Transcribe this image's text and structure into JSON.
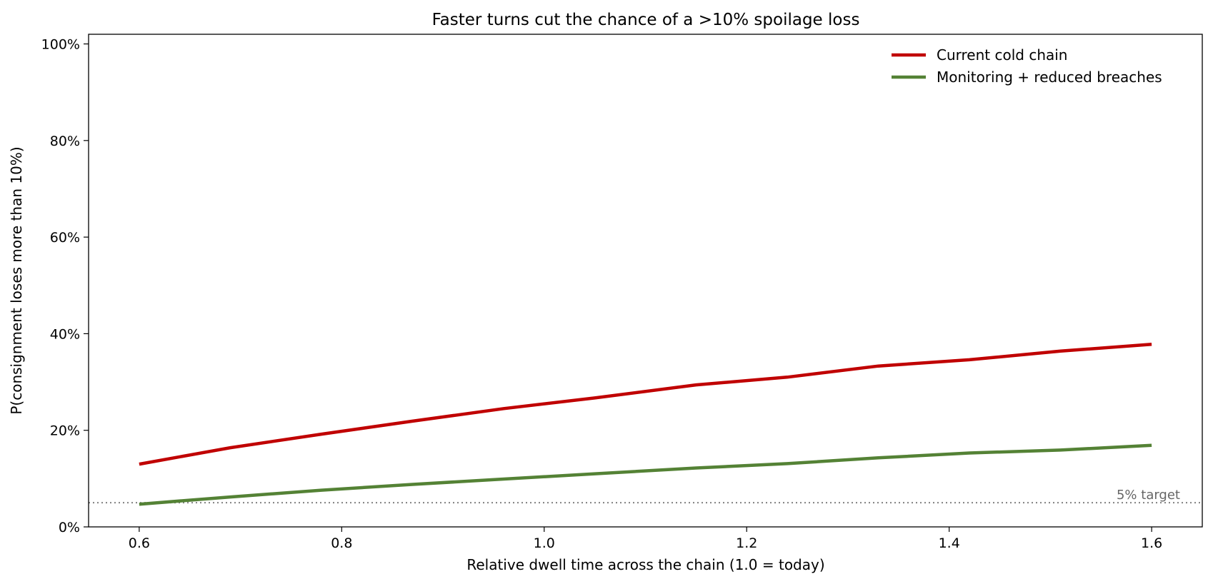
{
  "chart_data": {
    "type": "line",
    "title": "Faster turns cut the chance of a >10% spoilage loss",
    "xlabel": "Relative dwell time across the chain  (1.0 = today)",
    "ylabel": "P(consignment loses more than 10%)",
    "xlim": [
      0.55,
      1.65
    ],
    "ylim": [
      0,
      1.02
    ],
    "x_ticks": [
      0.6,
      0.8,
      1.0,
      1.2,
      1.4,
      1.6
    ],
    "x_tick_labels": [
      "0.6",
      "0.8",
      "1.0",
      "1.2",
      "1.4",
      "1.6"
    ],
    "y_ticks": [
      0,
      0.2,
      0.4,
      0.6,
      0.8,
      1.0
    ],
    "y_tick_labels": [
      "0%",
      "20%",
      "40%",
      "60%",
      "80%",
      "100%"
    ],
    "grid": false,
    "legend_position": "top-right",
    "x": [
      0.6,
      0.69,
      0.78,
      0.87,
      0.96,
      1.05,
      1.15,
      1.24,
      1.33,
      1.42,
      1.51,
      1.6
    ],
    "series": [
      {
        "name": "Current cold chain",
        "color": "#c00000",
        "values": [
          0.13,
          0.164,
          0.192,
          0.219,
          0.245,
          0.267,
          0.294,
          0.31,
          0.333,
          0.346,
          0.364,
          0.378
        ]
      },
      {
        "name": "Monitoring + reduced breaches",
        "color": "#548235",
        "values": [
          0.047,
          0.062,
          0.076,
          0.088,
          0.099,
          0.11,
          0.122,
          0.131,
          0.143,
          0.153,
          0.159,
          0.169
        ]
      }
    ],
    "reference_line": {
      "y": 0.05,
      "label": "5% target",
      "color": "#808080"
    }
  }
}
